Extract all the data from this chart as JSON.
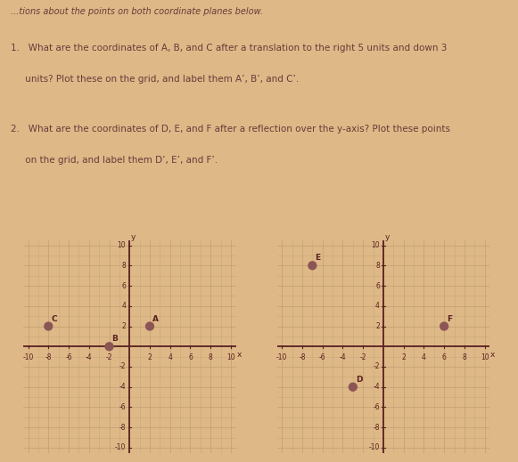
{
  "background_color": "#deb887",
  "text_color": "#6b3a3a",
  "title_line": "...tions about the points on both coordinate planes below.",
  "question1_lines": [
    "1.   What are the coordinates of A, B, and C after a translation to the right 5 units and down 3",
    "     units? Plot these on the grid, and label them A’, B’, and C’."
  ],
  "question2_lines": [
    "2.   What are the coordinates of D, E, and F after a reflection over the y-axis? Plot these points",
    "     on the grid, and label them D’, E’, and F’."
  ],
  "grid1": {
    "points": {
      "A": [
        2,
        2
      ],
      "B": [
        -2,
        0
      ],
      "C": [
        -8,
        2
      ]
    }
  },
  "grid2": {
    "points": {
      "E": [
        -7,
        8
      ],
      "F": [
        6,
        2
      ],
      "D": [
        -3,
        -4
      ]
    }
  },
  "axis_color": "#5a2020",
  "grid_color_minor": "#c8a878",
  "grid_color_major": "#c0a070",
  "point_color": "#8b5555",
  "point_size": 55,
  "font_size_text": 7.5,
  "font_size_label": 6.5,
  "font_size_tick": 5.5,
  "font_size_point": 6.5
}
